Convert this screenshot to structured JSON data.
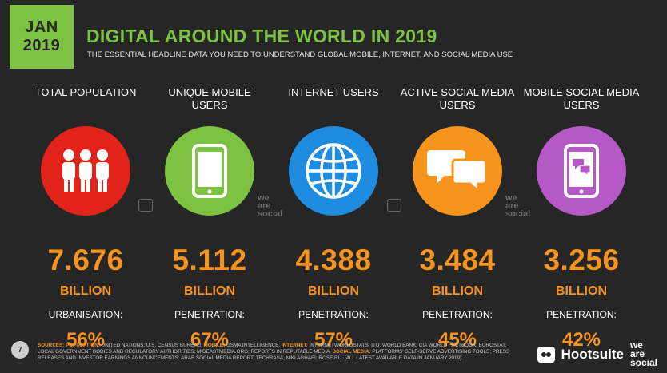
{
  "badge": {
    "month": "JAN",
    "year": "2019"
  },
  "title": "DIGITAL AROUND THE WORLD IN 2019",
  "subtitle": "THE ESSENTIAL HEADLINE DATA YOU NEED TO UNDERSTAND GLOBAL MOBILE, INTERNET, AND SOCIAL MEDIA USE",
  "colors": {
    "accent_green": "#7dc242",
    "accent_orange": "#f7941d",
    "red": "#e2231a",
    "green": "#7dc242",
    "blue": "#1f8ce0",
    "orange": "#f7941d",
    "purple": "#b658c5",
    "background": "#262626"
  },
  "columns": [
    {
      "label": "TOTAL POPULATION",
      "icon": "people-icon",
      "value": "7.676",
      "unit": "BILLION",
      "metric_label": "URBANISATION:",
      "metric_value": "56%"
    },
    {
      "label": "UNIQUE MOBILE USERS",
      "icon": "mobile-phone-icon",
      "value": "5.112",
      "unit": "BILLION",
      "metric_label": "PENETRATION:",
      "metric_value": "67%"
    },
    {
      "label": "INTERNET USERS",
      "icon": "globe-icon",
      "value": "4.388",
      "unit": "BILLION",
      "metric_label": "PENETRATION:",
      "metric_value": "57%"
    },
    {
      "label": "ACTIVE SOCIAL MEDIA USERS",
      "icon": "speech-bubbles-icon",
      "value": "3.484",
      "unit": "BILLION",
      "metric_label": "PENETRATION:",
      "metric_value": "45%"
    },
    {
      "label": "MOBILE SOCIAL MEDIA USERS",
      "icon": "mobile-chat-icon",
      "value": "3.256",
      "unit": "BILLION",
      "metric_label": "PENETRATION:",
      "metric_value": "42%"
    }
  ],
  "watermark": {
    "line1": "we",
    "line2": "are",
    "line3": "social"
  },
  "footer": {
    "page_number": "7",
    "sources_label": "SOURCES:",
    "sources": [
      {
        "key": "POPULATION:",
        "text": "UNITED NATIONS; U.S. CENSUS BUREAU."
      },
      {
        "key": "MOBILE:",
        "text": "GSMA INTELLIGENCE."
      },
      {
        "key": "INTERNET:",
        "text": "INTERNETWORLDSTATS; ITU; WORLD BANK; CIA WORLD FACTBOOK; EUROSTAT; LOCAL GOVERNMENT BODIES AND REGULATORY AUTHORITIES; MIDEASTMEDIA.ORG; REPORTS IN REPUTABLE MEDIA."
      },
      {
        "key": "SOCIAL MEDIA:",
        "text": "PLATFORMS' SELF-SERVE ADVERTISING TOOLS; PRESS RELEASES AND INVESTOR EARNINGS ANNOUNCEMENTS; ARAB SOCIAL MEDIA REPORT; TECHRASA; NIKI AGHAEI; ROSE.RU. (ALL LATEST AVAILABLE DATA IN JANUARY 2019)."
      }
    ],
    "brand_hootsuite": "Hootsuite",
    "brand_was": {
      "line1": "we",
      "line2": "are",
      "line3": "social"
    }
  }
}
